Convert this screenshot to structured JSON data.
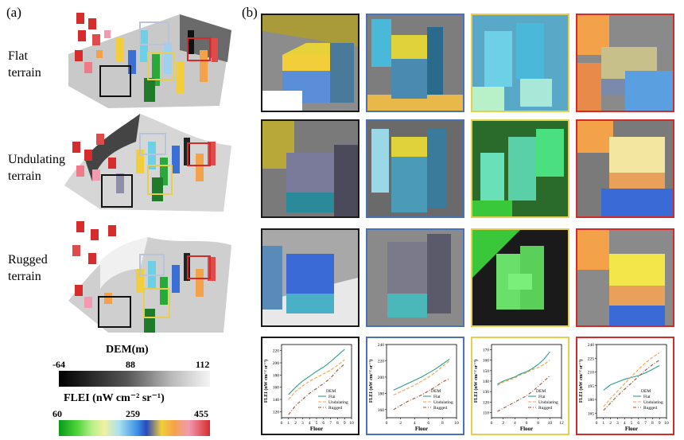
{
  "panel_a_label": "(a)",
  "panel_b_label": "(b)",
  "terrain_rows": [
    {
      "line1": "Flat",
      "line2": "terrain"
    },
    {
      "line1": "Undulating",
      "line2": "terrain"
    },
    {
      "line1": "Rugged",
      "line2": "terrain"
    }
  ],
  "dem_legend": {
    "title": "DEM(m)",
    "ticks": [
      "-64",
      "88",
      "112"
    ]
  },
  "flei_legend": {
    "title": "FLEI (nW cm⁻² sr⁻¹)",
    "ticks": [
      "60",
      "259",
      "455"
    ]
  },
  "frame_colors": {
    "black": "#1a1a1a",
    "blue": "#4a72b8",
    "yellow": "#e6cf4f",
    "red": "#d42a2a"
  },
  "chart_data": [
    {
      "type": "line",
      "xlabel": "Floor",
      "ylabel": "FLEI (nW cm⁻² sr⁻¹)",
      "x_ticks": [
        "0",
        "1",
        "2",
        "3",
        "4",
        "5",
        "6",
        "7",
        "8",
        "9",
        "10"
      ],
      "y_ticks": [
        "220",
        "200",
        "180",
        "160",
        "140",
        "120"
      ],
      "xlim": [
        0,
        10
      ],
      "ylim": [
        110,
        230
      ],
      "frame": "black",
      "legend": {
        "title": "DEM",
        "position": "bottom-right"
      },
      "series": [
        {
          "name": "Flat",
          "color": "#2a9d8f",
          "style": "solid",
          "x": [
            1,
            2,
            3,
            4,
            5,
            6,
            7,
            8,
            9
          ],
          "y": [
            148,
            160,
            170,
            178,
            186,
            193,
            202,
            212,
            222
          ]
        },
        {
          "name": "Undulating",
          "color": "#f4a24a",
          "style": "dashed",
          "x": [
            1,
            2,
            3,
            4,
            5,
            6,
            7,
            8,
            9
          ],
          "y": [
            140,
            153,
            162,
            170,
            176,
            182,
            188,
            196,
            205
          ]
        },
        {
          "name": "Rugged",
          "color": "#a0522d",
          "style": "dashdot",
          "x": [
            1,
            2,
            3,
            4,
            5,
            6,
            7,
            8,
            9
          ],
          "y": [
            115,
            130,
            140,
            150,
            158,
            166,
            175,
            188,
            198
          ]
        }
      ]
    },
    {
      "type": "line",
      "xlabel": "Floor",
      "ylabel": "FLEI (nW cm⁻² sr⁻¹)",
      "x_ticks": [
        "0",
        "2",
        "4",
        "6",
        "8",
        "10"
      ],
      "y_ticks": [
        "240",
        "220",
        "200",
        "180",
        "160"
      ],
      "xlim": [
        0,
        10
      ],
      "ylim": [
        150,
        240
      ],
      "frame": "blue",
      "legend": {
        "title": "DEM",
        "position": "bottom-right"
      },
      "series": [
        {
          "name": "Flat",
          "color": "#2a9d8f",
          "style": "solid",
          "x": [
            1,
            2,
            3,
            4,
            5,
            6,
            7,
            8,
            9
          ],
          "y": [
            184,
            188,
            192,
            196,
            200,
            205,
            210,
            216,
            222
          ]
        },
        {
          "name": "Undulating",
          "color": "#f4a24a",
          "style": "dashed",
          "x": [
            1,
            2,
            3,
            4,
            5,
            6,
            7,
            8,
            9
          ],
          "y": [
            178,
            182,
            186,
            190,
            195,
            200,
            206,
            213,
            220
          ]
        },
        {
          "name": "Rugged",
          "color": "#a0522d",
          "style": "dashdot",
          "x": [
            1,
            2,
            3,
            4,
            5,
            6,
            7,
            8,
            9
          ],
          "y": [
            160,
            165,
            170,
            174,
            178,
            183,
            188,
            194,
            198
          ]
        }
      ]
    },
    {
      "type": "line",
      "xlabel": "Floor",
      "ylabel": "FLEI (nW cm⁻² sr⁻¹)",
      "x_ticks": [
        "0",
        "2",
        "4",
        "6",
        "8",
        "10",
        "12"
      ],
      "y_ticks": [
        "170",
        "160",
        "150",
        "140",
        "130",
        "120",
        "110"
      ],
      "xlim": [
        0,
        12
      ],
      "ylim": [
        105,
        175
      ],
      "frame": "yellow",
      "legend": {
        "title": "DEM",
        "position": "bottom-right"
      },
      "series": [
        {
          "name": "Flat",
          "color": "#2a9d8f",
          "style": "solid",
          "x": [
            1,
            2,
            3,
            4,
            5,
            6,
            7,
            8,
            9,
            10
          ],
          "y": [
            137,
            140,
            142,
            144,
            147,
            149,
            152,
            156,
            161,
            168
          ]
        },
        {
          "name": "Undulating",
          "color": "#f4a24a",
          "style": "dashed",
          "x": [
            1,
            2,
            3,
            4,
            5,
            6,
            7,
            8,
            9,
            10
          ],
          "y": [
            136,
            139,
            141,
            143,
            146,
            148,
            151,
            153,
            156,
            160
          ]
        },
        {
          "name": "Rugged",
          "color": "#a0522d",
          "style": "dashdot",
          "x": [
            1,
            2,
            3,
            4,
            5,
            6,
            7,
            8,
            9,
            10
          ],
          "y": [
            111,
            114,
            117,
            120,
            123,
            126,
            130,
            135,
            140,
            145
          ]
        }
      ]
    },
    {
      "type": "line",
      "xlabel": "Floor",
      "ylabel": "FLEI (nW cm⁻² sr⁻¹)",
      "x_ticks": [
        "0",
        "1",
        "2",
        "3",
        "4",
        "5",
        "6",
        "7",
        "8",
        "9",
        "10"
      ],
      "y_ticks": [
        "240",
        "225",
        "210",
        "195",
        "180",
        "165"
      ],
      "xlim": [
        0,
        10
      ],
      "ylim": [
        160,
        240
      ],
      "frame": "red",
      "legend": {
        "title": "DEM",
        "position": "bottom-right"
      },
      "series": [
        {
          "name": "Flat",
          "color": "#2a9d8f",
          "style": "solid",
          "x": [
            1,
            2,
            3,
            4,
            5,
            6,
            7,
            8,
            9
          ],
          "y": [
            190,
            196,
            199,
            202,
            204,
            206,
            209,
            213,
            217
          ]
        },
        {
          "name": "Undulating",
          "color": "#f4a24a",
          "style": "dashed",
          "x": [
            1,
            2,
            3,
            4,
            5,
            6,
            7,
            8,
            9
          ],
          "y": [
            172,
            181,
            189,
            197,
            205,
            213,
            220,
            226,
            231
          ]
        },
        {
          "name": "Rugged",
          "color": "#a0522d",
          "style": "dashdot",
          "x": [
            1,
            2,
            3,
            4,
            5,
            6,
            7,
            8,
            9
          ],
          "y": [
            168,
            176,
            184,
            191,
            198,
            205,
            212,
            218,
            223
          ]
        }
      ]
    }
  ]
}
